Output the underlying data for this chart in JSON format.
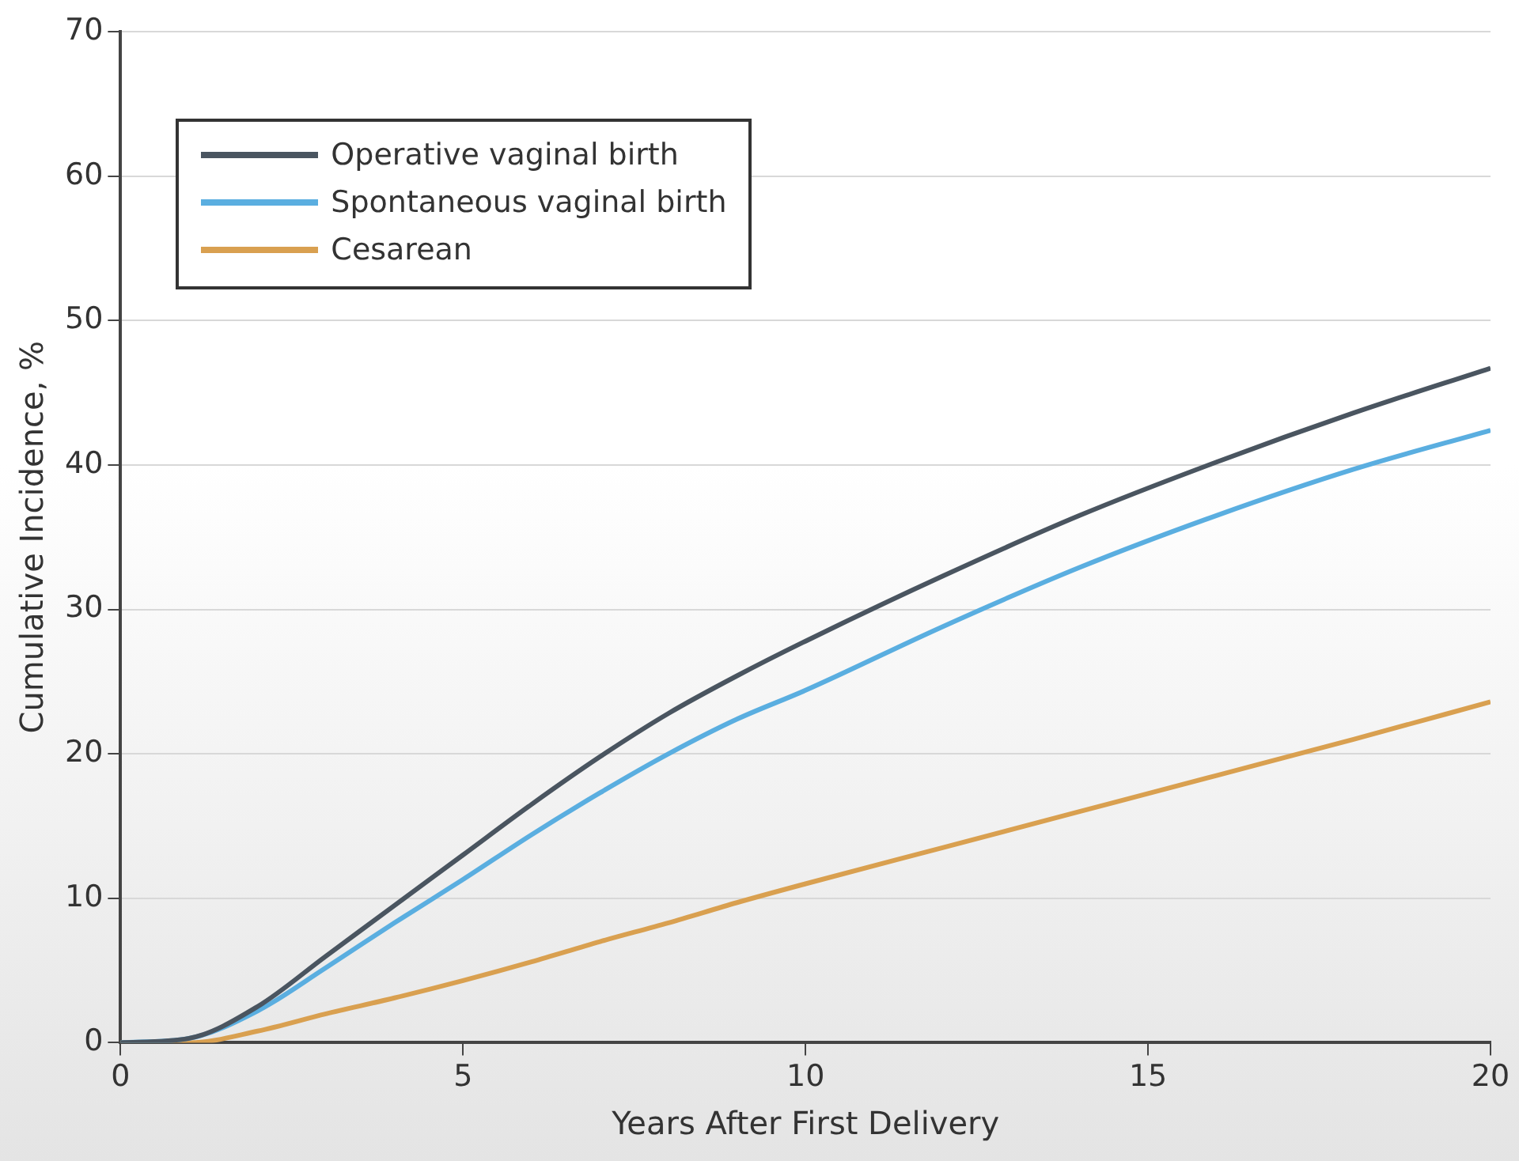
{
  "chart_data": {
    "type": "line",
    "xlabel": "Years After First Delivery",
    "ylabel": "Cumulative Incidence, %",
    "xlim": [
      0,
      20
    ],
    "xticks": [
      0,
      5,
      10,
      15,
      20
    ],
    "ylim": [
      0,
      70
    ],
    "yticks": [
      0,
      10,
      20,
      30,
      40,
      50,
      60,
      70
    ],
    "x": [
      0,
      1,
      2,
      3,
      4,
      5,
      6,
      7,
      8,
      9,
      10,
      12,
      14,
      16,
      18,
      20
    ],
    "series": [
      {
        "name": "Operative vaginal birth",
        "color": "#4a5560",
        "values": [
          0,
          0.3,
          2.5,
          6,
          9.5,
          13,
          16.5,
          19.8,
          22.8,
          25.4,
          27.8,
          32.3,
          36.5,
          40.2,
          43.6,
          46.7
        ]
      },
      {
        "name": "Spontaneous vaginal birth",
        "color": "#5aaee0",
        "values": [
          0,
          0.3,
          2.2,
          5.2,
          8.3,
          11.3,
          14.4,
          17.3,
          20,
          22.4,
          24.4,
          28.8,
          32.9,
          36.5,
          39.7,
          42.4
        ]
      },
      {
        "name": "Cesarean",
        "color": "#d9a050",
        "values": [
          0,
          0,
          0.8,
          2,
          3.1,
          4.3,
          5.6,
          7,
          8.3,
          9.7,
          11,
          13.5,
          16,
          18.5,
          21,
          23.6
        ]
      }
    ],
    "grid": "y",
    "legend": "top left",
    "marker": "none",
    "line_style": "solid"
  }
}
